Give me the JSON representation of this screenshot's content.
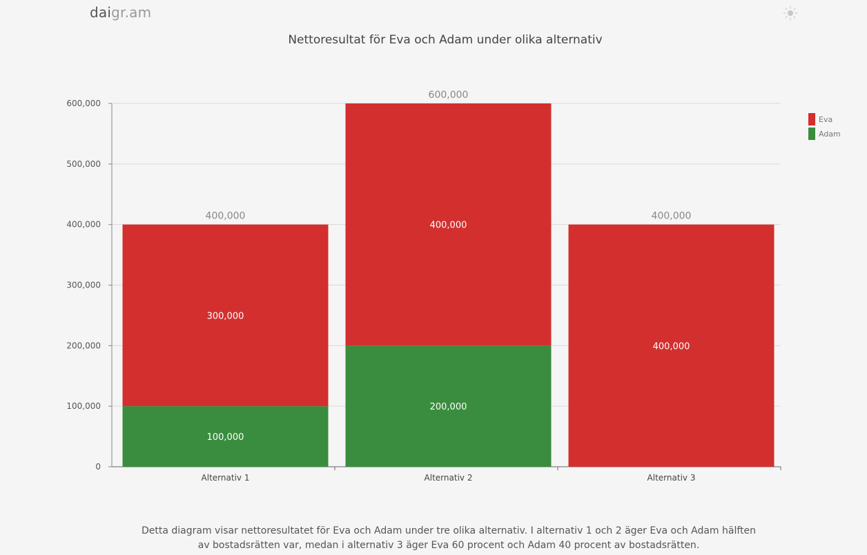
{
  "app": {
    "logo_main": "dai",
    "logo_rest": "gr.am",
    "theme_icon": "sun-icon"
  },
  "chart_data": {
    "type": "bar",
    "stacked": true,
    "title": "Nettoresultat för Eva och Adam under olika alternativ",
    "categories": [
      "Alternativ 1",
      "Alternativ 2",
      "Alternativ 3"
    ],
    "series": [
      {
        "name": "Adam",
        "values": [
          100000,
          200000,
          0
        ],
        "color": "#3a8d3e"
      },
      {
        "name": "Eva",
        "values": [
          300000,
          400000,
          400000
        ],
        "color": "#d32f2f"
      }
    ],
    "totals": [
      400000,
      600000,
      400000
    ],
    "ylim": [
      0,
      600000
    ],
    "yticks": [
      0,
      100000,
      200000,
      300000,
      400000,
      500000,
      600000
    ],
    "xlabel": "",
    "ylabel": "",
    "grid": true,
    "legend": {
      "position": "top-right",
      "order": [
        "Eva",
        "Adam"
      ]
    }
  },
  "description": "Detta diagram visar nettoresultatet för Eva och Adam under tre olika alternativ. I alternativ 1 och 2 äger Eva och Adam hälften av bostadsrätten var, medan i alternativ 3 äger Eva 60 procent och Adam 40 procent av bostadsrätten."
}
